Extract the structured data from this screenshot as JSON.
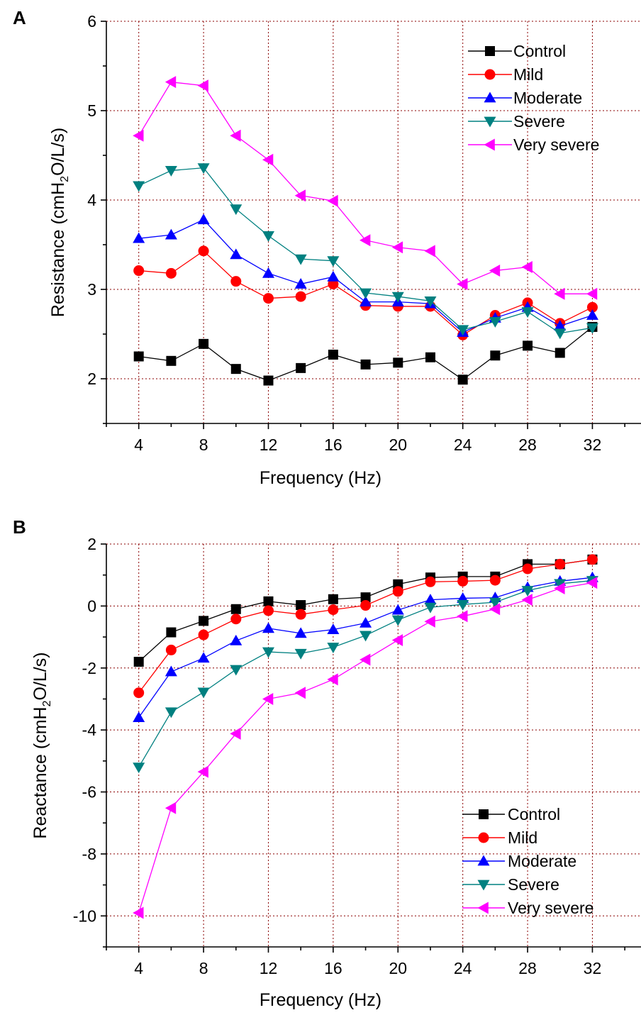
{
  "figure": {
    "legend_series": [
      "Control",
      "Mild",
      "Moderate",
      "Severe",
      "Very severe"
    ]
  },
  "colors": {
    "Control": "#000000",
    "Mild": "#ff0000",
    "Moderate": "#0000ff",
    "Severe": "#008080",
    "Very severe": "#ff00ff",
    "grid": "#8b0000"
  },
  "chart_data": [
    {
      "panel": "A",
      "type": "line",
      "xlabel": "Frequency (Hz)",
      "ylabel_parts": [
        "Resistance (cmH",
        "2",
        "O/L/s)"
      ],
      "xlim": [
        2,
        35
      ],
      "ylim": [
        1.5,
        6
      ],
      "xticks": [
        4,
        8,
        12,
        16,
        20,
        24,
        28,
        32
      ],
      "yticks": [
        2,
        3,
        4,
        5,
        6
      ],
      "grid": true,
      "legend_position": "top-right",
      "x": [
        4,
        6,
        8,
        10,
        12,
        14,
        16,
        18,
        20,
        22,
        24,
        26,
        28,
        30,
        32
      ],
      "series": [
        {
          "name": "Control",
          "marker": "square",
          "values": [
            2.25,
            2.2,
            2.39,
            2.11,
            1.98,
            2.12,
            2.27,
            2.16,
            2.18,
            2.24,
            1.99,
            2.26,
            2.37,
            2.29,
            2.58
          ]
        },
        {
          "name": "Mild",
          "marker": "circle",
          "values": [
            3.21,
            3.18,
            3.43,
            3.09,
            2.9,
            2.92,
            3.06,
            2.82,
            2.81,
            2.81,
            2.49,
            2.71,
            2.85,
            2.62,
            2.8
          ]
        },
        {
          "name": "Moderate",
          "marker": "triangle-up",
          "values": [
            3.57,
            3.61,
            3.78,
            3.39,
            3.18,
            3.06,
            3.14,
            2.86,
            2.86,
            2.84,
            2.52,
            2.68,
            2.8,
            2.59,
            2.71
          ]
        },
        {
          "name": "Severe",
          "marker": "triangle-down",
          "values": [
            4.16,
            4.33,
            4.36,
            3.9,
            3.6,
            3.34,
            3.32,
            2.96,
            2.92,
            2.87,
            2.55,
            2.64,
            2.75,
            2.51,
            2.57
          ]
        },
        {
          "name": "Very severe",
          "marker": "triangle-left",
          "values": [
            4.72,
            5.32,
            5.28,
            4.72,
            4.45,
            4.05,
            3.99,
            3.55,
            3.47,
            3.43,
            3.06,
            3.21,
            3.25,
            2.95,
            2.95
          ]
        }
      ]
    },
    {
      "panel": "B",
      "type": "line",
      "xlabel": "Frequency (Hz)",
      "ylabel_parts": [
        "Reactance (cmH",
        "2",
        "O/L/s)"
      ],
      "xlim": [
        2,
        35
      ],
      "ylim": [
        -11,
        2
      ],
      "xticks": [
        4,
        8,
        12,
        16,
        20,
        24,
        28,
        32
      ],
      "yticks": [
        -10,
        -8,
        -6,
        -4,
        -2,
        0,
        2
      ],
      "grid": true,
      "legend_position": "bottom-right",
      "x": [
        4,
        6,
        8,
        10,
        12,
        14,
        16,
        18,
        20,
        22,
        24,
        26,
        28,
        30,
        32
      ],
      "series": [
        {
          "name": "Control",
          "marker": "square",
          "values": [
            -1.8,
            -0.85,
            -0.48,
            -0.1,
            0.15,
            0.03,
            0.22,
            0.28,
            0.7,
            0.92,
            0.95,
            0.95,
            1.35,
            1.35,
            1.5
          ]
        },
        {
          "name": "Mild",
          "marker": "circle",
          "values": [
            -2.8,
            -1.42,
            -0.93,
            -0.42,
            -0.15,
            -0.27,
            -0.12,
            0.02,
            0.47,
            0.78,
            0.8,
            0.83,
            1.2,
            1.35,
            1.5
          ]
        },
        {
          "name": "Moderate",
          "marker": "triangle-up",
          "values": [
            -3.6,
            -2.12,
            -1.68,
            -1.12,
            -0.72,
            -0.88,
            -0.76,
            -0.55,
            -0.13,
            0.2,
            0.25,
            0.27,
            0.6,
            0.8,
            0.92
          ]
        },
        {
          "name": "Severe",
          "marker": "triangle-down",
          "values": [
            -5.2,
            -3.42,
            -2.78,
            -2.05,
            -1.48,
            -1.53,
            -1.33,
            -0.95,
            -0.45,
            -0.04,
            0.05,
            0.12,
            0.5,
            0.72,
            0.82
          ]
        },
        {
          "name": "Very severe",
          "marker": "triangle-left",
          "values": [
            -9.9,
            -6.52,
            -5.35,
            -4.12,
            -3.0,
            -2.8,
            -2.37,
            -1.73,
            -1.1,
            -0.5,
            -0.33,
            -0.1,
            0.2,
            0.57,
            0.75
          ]
        }
      ]
    }
  ]
}
